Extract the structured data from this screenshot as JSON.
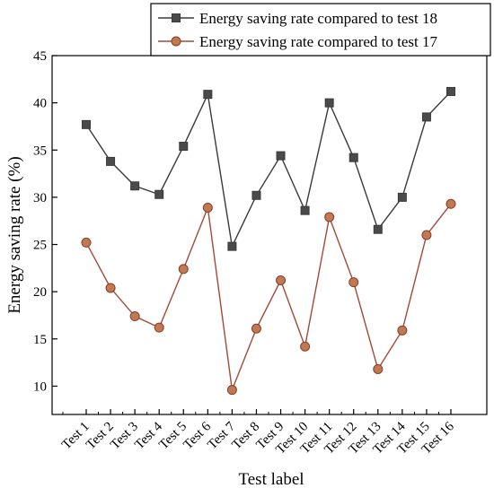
{
  "chart_data": {
    "type": "line",
    "categories": [
      "Test 1",
      "Test 2",
      "Test 3",
      "Test 4",
      "Test 5",
      "Test 6",
      "Test 7",
      "Test 8",
      "Test 9",
      "Test 10",
      "Test 11",
      "Test 12",
      "Test 13",
      "Test 14",
      "Test 15",
      "Test 16"
    ],
    "series": [
      {
        "name": "Energy saving rate compared to test 18",
        "marker": "square",
        "color": "#3a3a3a",
        "values": [
          37.7,
          33.8,
          31.2,
          30.3,
          35.4,
          40.9,
          24.8,
          30.2,
          34.4,
          28.6,
          40.0,
          34.2,
          26.6,
          30.0,
          38.5,
          41.2
        ]
      },
      {
        "name": "Energy saving rate compared to test 17",
        "marker": "circle",
        "color": "#a24a3a",
        "values": [
          25.2,
          20.4,
          17.4,
          16.2,
          22.4,
          28.9,
          9.6,
          16.1,
          21.2,
          14.2,
          27.9,
          21.0,
          11.8,
          15.9,
          26.0,
          29.3
        ]
      }
    ],
    "title": "",
    "xlabel": "Test label",
    "ylabel": "Energy saving rate (%)",
    "ylim": [
      7,
      45
    ],
    "yticks": [
      10,
      15,
      20,
      25,
      30,
      35,
      40,
      45
    ],
    "grid": false,
    "legend_position": "top-right"
  }
}
